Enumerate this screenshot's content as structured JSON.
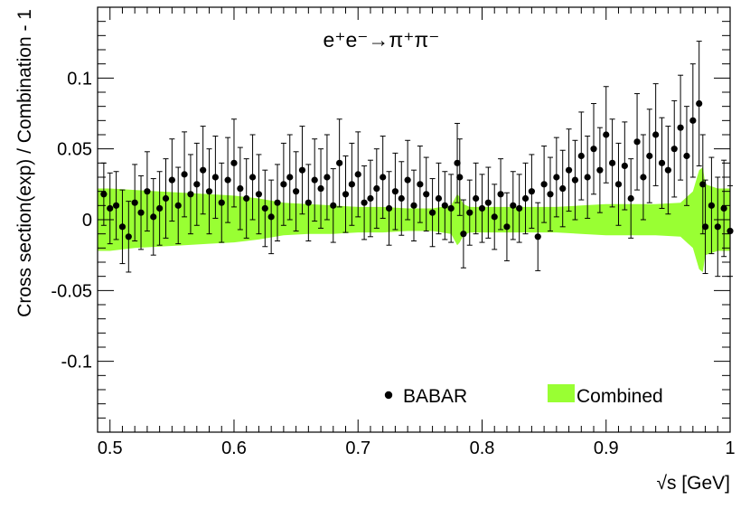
{
  "chart_data": {
    "type": "scatter",
    "title": "e⁺e⁻→π⁺π⁻",
    "xlabel": "√s   [GeV]",
    "ylabel": "Cross section(exp) / Combination - 1",
    "xlim": [
      0.49,
      1.0
    ],
    "ylim": [
      -0.15,
      0.15
    ],
    "x_ticks": [
      {
        "value": 0.5,
        "label": "0.5"
      },
      {
        "value": 0.6,
        "label": "0.6"
      },
      {
        "value": 0.7,
        "label": "0.7"
      },
      {
        "value": 0.8,
        "label": "0.8"
      },
      {
        "value": 0.9,
        "label": "0.9"
      },
      {
        "value": 1.0,
        "label": "1"
      }
    ],
    "y_ticks": [
      {
        "value": 0.1,
        "label": "0.1"
      },
      {
        "value": 0.05,
        "label": "0.05"
      },
      {
        "value": 0.0,
        "label": "0"
      },
      {
        "value": -0.05,
        "label": "-0.05"
      },
      {
        "value": -0.1,
        "label": "-0.1"
      }
    ],
    "grid": false,
    "legend": {
      "placement": "bottom-right",
      "entries": [
        {
          "label": "BABAR",
          "marker": "dot",
          "color": "#000000"
        },
        {
          "label": "Combined",
          "marker": "box",
          "color": "#99ff33"
        }
      ]
    },
    "series": [
      {
        "name": "Combined",
        "kind": "band",
        "color": "#99ff33",
        "x": [
          0.49,
          0.5,
          0.52,
          0.54,
          0.56,
          0.58,
          0.6,
          0.62,
          0.64,
          0.66,
          0.68,
          0.7,
          0.72,
          0.74,
          0.76,
          0.775,
          0.78,
          0.782,
          0.785,
          0.79,
          0.8,
          0.82,
          0.84,
          0.86,
          0.88,
          0.9,
          0.92,
          0.94,
          0.96,
          0.97,
          0.975,
          0.978,
          0.98,
          0.99,
          1.0
        ],
        "upper": [
          0.022,
          0.022,
          0.021,
          0.02,
          0.019,
          0.018,
          0.017,
          0.015,
          0.012,
          0.011,
          0.01,
          0.009,
          0.009,
          0.008,
          0.008,
          0.01,
          0.018,
          0.016,
          0.011,
          0.009,
          0.009,
          0.009,
          0.009,
          0.009,
          0.01,
          0.011,
          0.011,
          0.011,
          0.012,
          0.02,
          0.035,
          0.037,
          0.025,
          0.022,
          0.022
        ],
        "lower": [
          -0.022,
          -0.022,
          -0.02,
          -0.019,
          -0.018,
          -0.017,
          -0.016,
          -0.014,
          -0.011,
          -0.01,
          -0.01,
          -0.009,
          -0.009,
          -0.008,
          -0.008,
          -0.01,
          -0.018,
          -0.016,
          -0.011,
          -0.009,
          -0.009,
          -0.009,
          -0.009,
          -0.009,
          -0.01,
          -0.011,
          -0.011,
          -0.011,
          -0.012,
          -0.02,
          -0.035,
          -0.037,
          -0.025,
          -0.022,
          -0.022
        ]
      },
      {
        "name": "BABAR",
        "kind": "points",
        "color": "#000000",
        "x": [
          0.495,
          0.5,
          0.505,
          0.51,
          0.515,
          0.52,
          0.525,
          0.53,
          0.535,
          0.54,
          0.545,
          0.55,
          0.555,
          0.56,
          0.565,
          0.57,
          0.575,
          0.58,
          0.585,
          0.59,
          0.595,
          0.6,
          0.605,
          0.61,
          0.615,
          0.62,
          0.625,
          0.63,
          0.635,
          0.64,
          0.645,
          0.65,
          0.655,
          0.66,
          0.665,
          0.67,
          0.675,
          0.68,
          0.685,
          0.69,
          0.695,
          0.7,
          0.705,
          0.71,
          0.715,
          0.72,
          0.725,
          0.73,
          0.735,
          0.74,
          0.745,
          0.75,
          0.755,
          0.76,
          0.765,
          0.77,
          0.775,
          0.78,
          0.782,
          0.785,
          0.79,
          0.795,
          0.8,
          0.805,
          0.81,
          0.815,
          0.82,
          0.825,
          0.83,
          0.835,
          0.84,
          0.845,
          0.85,
          0.855,
          0.86,
          0.865,
          0.87,
          0.875,
          0.88,
          0.885,
          0.89,
          0.895,
          0.9,
          0.905,
          0.91,
          0.915,
          0.92,
          0.925,
          0.93,
          0.935,
          0.94,
          0.945,
          0.95,
          0.955,
          0.96,
          0.965,
          0.97,
          0.975,
          0.978,
          0.98,
          0.985,
          0.99,
          0.995,
          1.0
        ],
        "y": [
          0.018,
          0.008,
          0.01,
          -0.005,
          -0.012,
          0.012,
          0.005,
          0.02,
          0.002,
          0.008,
          0.015,
          0.028,
          0.01,
          0.032,
          0.018,
          0.025,
          0.035,
          0.02,
          0.03,
          0.012,
          0.028,
          0.04,
          0.022,
          0.015,
          0.03,
          0.018,
          0.008,
          0.002,
          0.012,
          0.025,
          0.03,
          0.02,
          0.035,
          0.012,
          0.028,
          0.022,
          0.03,
          0.01,
          0.04,
          0.018,
          0.025,
          0.032,
          0.012,
          0.015,
          0.022,
          0.03,
          0.008,
          0.02,
          0.015,
          0.028,
          0.01,
          0.025,
          0.018,
          0.005,
          0.015,
          0.01,
          0.008,
          0.04,
          0.03,
          -0.01,
          0.005,
          0.015,
          0.008,
          0.012,
          0.002,
          0.018,
          -0.005,
          0.01,
          0.008,
          0.015,
          0.02,
          -0.012,
          0.025,
          0.018,
          0.03,
          0.022,
          0.035,
          0.028,
          0.045,
          0.03,
          0.05,
          0.035,
          0.06,
          0.04,
          0.025,
          0.038,
          0.015,
          0.055,
          0.03,
          0.045,
          0.06,
          0.04,
          0.035,
          0.05,
          0.065,
          0.045,
          0.07,
          0.082,
          0.025,
          -0.005,
          0.01,
          -0.005,
          0.008,
          -0.008
        ],
        "err": [
          0.022,
          0.025,
          0.024,
          0.026,
          0.025,
          0.027,
          0.026,
          0.028,
          0.027,
          0.026,
          0.028,
          0.029,
          0.027,
          0.03,
          0.028,
          0.029,
          0.031,
          0.03,
          0.029,
          0.028,
          0.03,
          0.031,
          0.029,
          0.028,
          0.03,
          0.028,
          0.027,
          0.026,
          0.027,
          0.029,
          0.03,
          0.028,
          0.031,
          0.027,
          0.029,
          0.028,
          0.03,
          0.026,
          0.031,
          0.027,
          0.029,
          0.03,
          0.026,
          0.027,
          0.028,
          0.029,
          0.026,
          0.027,
          0.026,
          0.028,
          0.025,
          0.027,
          0.026,
          0.024,
          0.025,
          0.024,
          0.024,
          0.028,
          0.027,
          0.024,
          0.023,
          0.025,
          0.024,
          0.025,
          0.023,
          0.025,
          0.024,
          0.024,
          0.024,
          0.025,
          0.026,
          0.024,
          0.027,
          0.026,
          0.028,
          0.027,
          0.029,
          0.028,
          0.031,
          0.029,
          0.032,
          0.03,
          0.034,
          0.031,
          0.029,
          0.031,
          0.028,
          0.034,
          0.03,
          0.033,
          0.036,
          0.032,
          0.031,
          0.034,
          0.037,
          0.035,
          0.04,
          0.044,
          0.035,
          0.033,
          0.034,
          0.035,
          0.034,
          0.032
        ]
      }
    ]
  }
}
